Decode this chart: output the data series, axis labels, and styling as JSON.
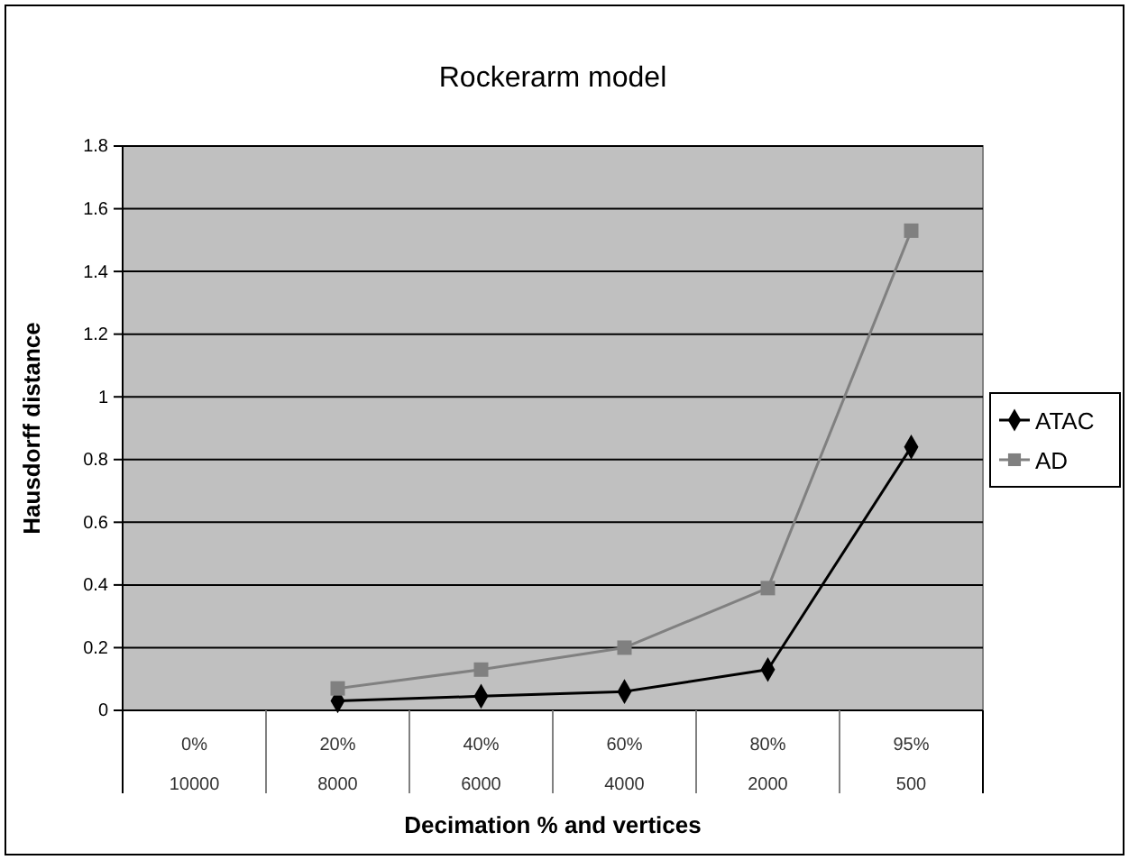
{
  "chart_data": {
    "type": "line",
    "title": "Rockerarm model",
    "xlabel": "Decimation % and vertices",
    "ylabel": "Hausdorff distance",
    "categories": [
      "0%\n10000",
      "20%\n8000",
      "40%\n6000",
      "60%\n4000",
      "80%\n2000",
      "95%\n500"
    ],
    "series": [
      {
        "name": "ATAC",
        "color": "#000000",
        "marker": "diamond",
        "values": [
          null,
          0.03,
          0.045,
          0.06,
          0.13,
          0.84
        ]
      },
      {
        "name": "AD",
        "color": "#808080",
        "marker": "square",
        "values": [
          null,
          0.07,
          0.13,
          0.2,
          0.39,
          1.53
        ]
      }
    ],
    "ylim": [
      0,
      1.8
    ],
    "yticks": [
      0,
      0.2,
      0.4,
      0.6,
      0.8,
      1,
      1.2,
      1.4,
      1.6,
      1.8
    ],
    "grid": "y",
    "legend": "right"
  }
}
